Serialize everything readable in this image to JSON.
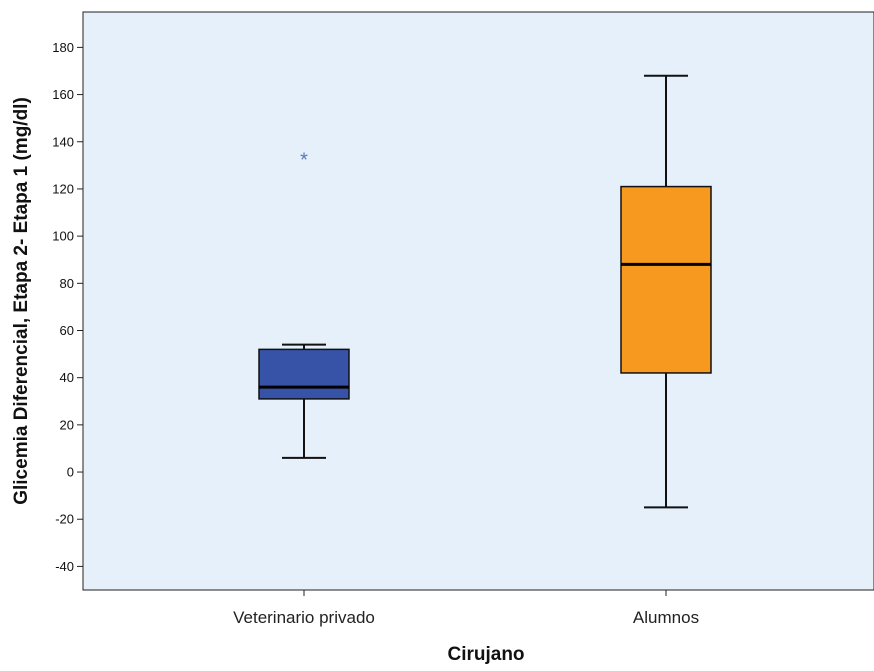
{
  "chart_data": {
    "type": "boxplot",
    "xlabel": "Cirujano",
    "ylabel": "Glicemia Diferencial, Etapa 2- Etapa 1 (mg/dl)",
    "ylim": [
      -50,
      195
    ],
    "yticks": [
      -40,
      -20,
      0,
      20,
      40,
      60,
      80,
      100,
      120,
      140,
      160,
      180
    ],
    "categories": [
      "Veterinario privado",
      "Alumnos"
    ],
    "series": [
      {
        "category": "Veterinario privado",
        "whisker_low": 6,
        "q1": 31,
        "median": 36,
        "q3": 52,
        "whisker_high": 54,
        "outliers": [
          133
        ],
        "color": "#3653a7"
      },
      {
        "category": "Alumnos",
        "whisker_low": -15,
        "q1": 42,
        "median": 88,
        "q3": 121,
        "whisker_high": 168,
        "outliers": [],
        "color": "#f7981f"
      }
    ],
    "plot_background": "#e6f0fb",
    "outlier_marker": "*",
    "outlier_color": "#5b78b7",
    "grid": false
  }
}
